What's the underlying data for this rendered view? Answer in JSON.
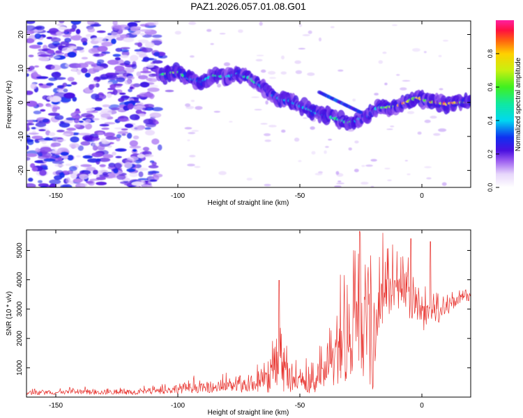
{
  "title": "PAZ1.2026.057.01.08.G01",
  "chart_data": [
    {
      "type": "heatmap",
      "title": "",
      "xlabel": "Height of straight line (km)",
      "ylabel": "Frequency (Hz)",
      "xlim": [
        -162,
        20
      ],
      "ylim": [
        -25,
        24
      ],
      "xticks": [
        -150,
        -100,
        -50,
        0
      ],
      "yticks": [
        -20,
        -10,
        0,
        10,
        20
      ],
      "colorbar": {
        "label": "Normalized spectral amplitude",
        "range": [
          0,
          1
        ],
        "ticks": [
          "0.0",
          "0.2",
          "0.4",
          "0.6",
          "0.8"
        ],
        "tick_values": [
          0,
          0.2,
          0.4,
          0.6,
          0.8
        ]
      },
      "ridge": {
        "x": [
          -108,
          -104,
          -100,
          -95,
          -90,
          -85,
          -80,
          -75,
          -70,
          -66,
          -62,
          -58,
          -54,
          -50,
          -46,
          -42,
          -38,
          -34,
          -30,
          -26,
          -22,
          -18,
          -14,
          -10,
          -6,
          -2,
          2,
          6,
          10,
          14,
          20
        ],
        "freq": [
          8,
          8.5,
          9,
          7,
          6,
          8,
          7.5,
          8.5,
          7,
          5,
          2.5,
          1,
          0.5,
          -1,
          -2,
          -3.5,
          -4,
          -5,
          -6,
          -5,
          -4,
          -1.5,
          -1.5,
          -1,
          0,
          1.5,
          0.5,
          0,
          -0.5,
          0,
          0
        ],
        "amplitude": [
          0.55,
          0.7,
          0.65,
          0.45,
          0.4,
          0.55,
          0.5,
          0.45,
          0.6,
          0.4,
          0.3,
          0.45,
          0.4,
          0.35,
          0.5,
          0.35,
          0.45,
          0.55,
          0.6,
          0.5,
          0.3,
          0.55,
          0.7,
          0.8,
          0.9,
          0.8,
          0.85,
          0.95,
          1.0,
          0.9,
          0.85
        ]
      },
      "noise_region_x": [
        -162,
        -108
      ],
      "noise_amplitude": [
        0.05,
        0.3
      ]
    },
    {
      "type": "line",
      "title": "",
      "xlabel": "Height of straight line (km)",
      "ylabel": "SNR (10 * v/v)",
      "xlim": [
        -162,
        20
      ],
      "ylim": [
        0,
        5700
      ],
      "xticks": [
        -150,
        -100,
        -50,
        0
      ],
      "yticks": [
        1000,
        2000,
        3000,
        4000,
        5000
      ],
      "series": [
        {
          "name": "SNR",
          "color": "#e8332e",
          "envelope_x": [
            -162,
            -140,
            -120,
            -105,
            -100,
            -90,
            -80,
            -70,
            -65,
            -62,
            -60,
            -58,
            -56,
            -54,
            -50,
            -46,
            -42,
            -38,
            -35,
            -32,
            -28,
            -26,
            -22,
            -20,
            -18,
            -16,
            -14,
            -12,
            -10,
            -8,
            -6,
            -4,
            -2,
            0,
            2,
            4,
            6,
            8,
            10,
            14,
            18,
            20
          ],
          "envelope_base": [
            150,
            160,
            170,
            200,
            300,
            300,
            350,
            400,
            550,
            800,
            1000,
            900,
            700,
            500,
            450,
            450,
            600,
            800,
            1200,
            1600,
            2000,
            2200,
            1900,
            1500,
            2800,
            3300,
            3500,
            3500,
            3400,
            3600,
            3500,
            3200,
            3000,
            2700,
            2800,
            3000,
            2700,
            2900,
            3000,
            3300,
            3400,
            3400
          ],
          "envelope_amp": [
            150,
            160,
            170,
            200,
            350,
            300,
            400,
            500,
            800,
            1300,
            2500,
            1300,
            1100,
            700,
            500,
            700,
            900,
            1300,
            1800,
            2500,
            3000,
            3300,
            3000,
            2800,
            1800,
            1600,
            1500,
            1400,
            1300,
            1500,
            1500,
            1300,
            1300,
            1000,
            900,
            700,
            700,
            600,
            500,
            400,
            300,
            300
          ],
          "peaks": [
            {
              "x": -58.5,
              "y": 3980
            },
            {
              "x": -25.5,
              "y": 5650
            },
            {
              "x": -16,
              "y": 5600
            },
            {
              "x": -4.5,
              "y": 5400
            },
            {
              "x": 3.5,
              "y": 5300
            }
          ]
        }
      ]
    }
  ]
}
